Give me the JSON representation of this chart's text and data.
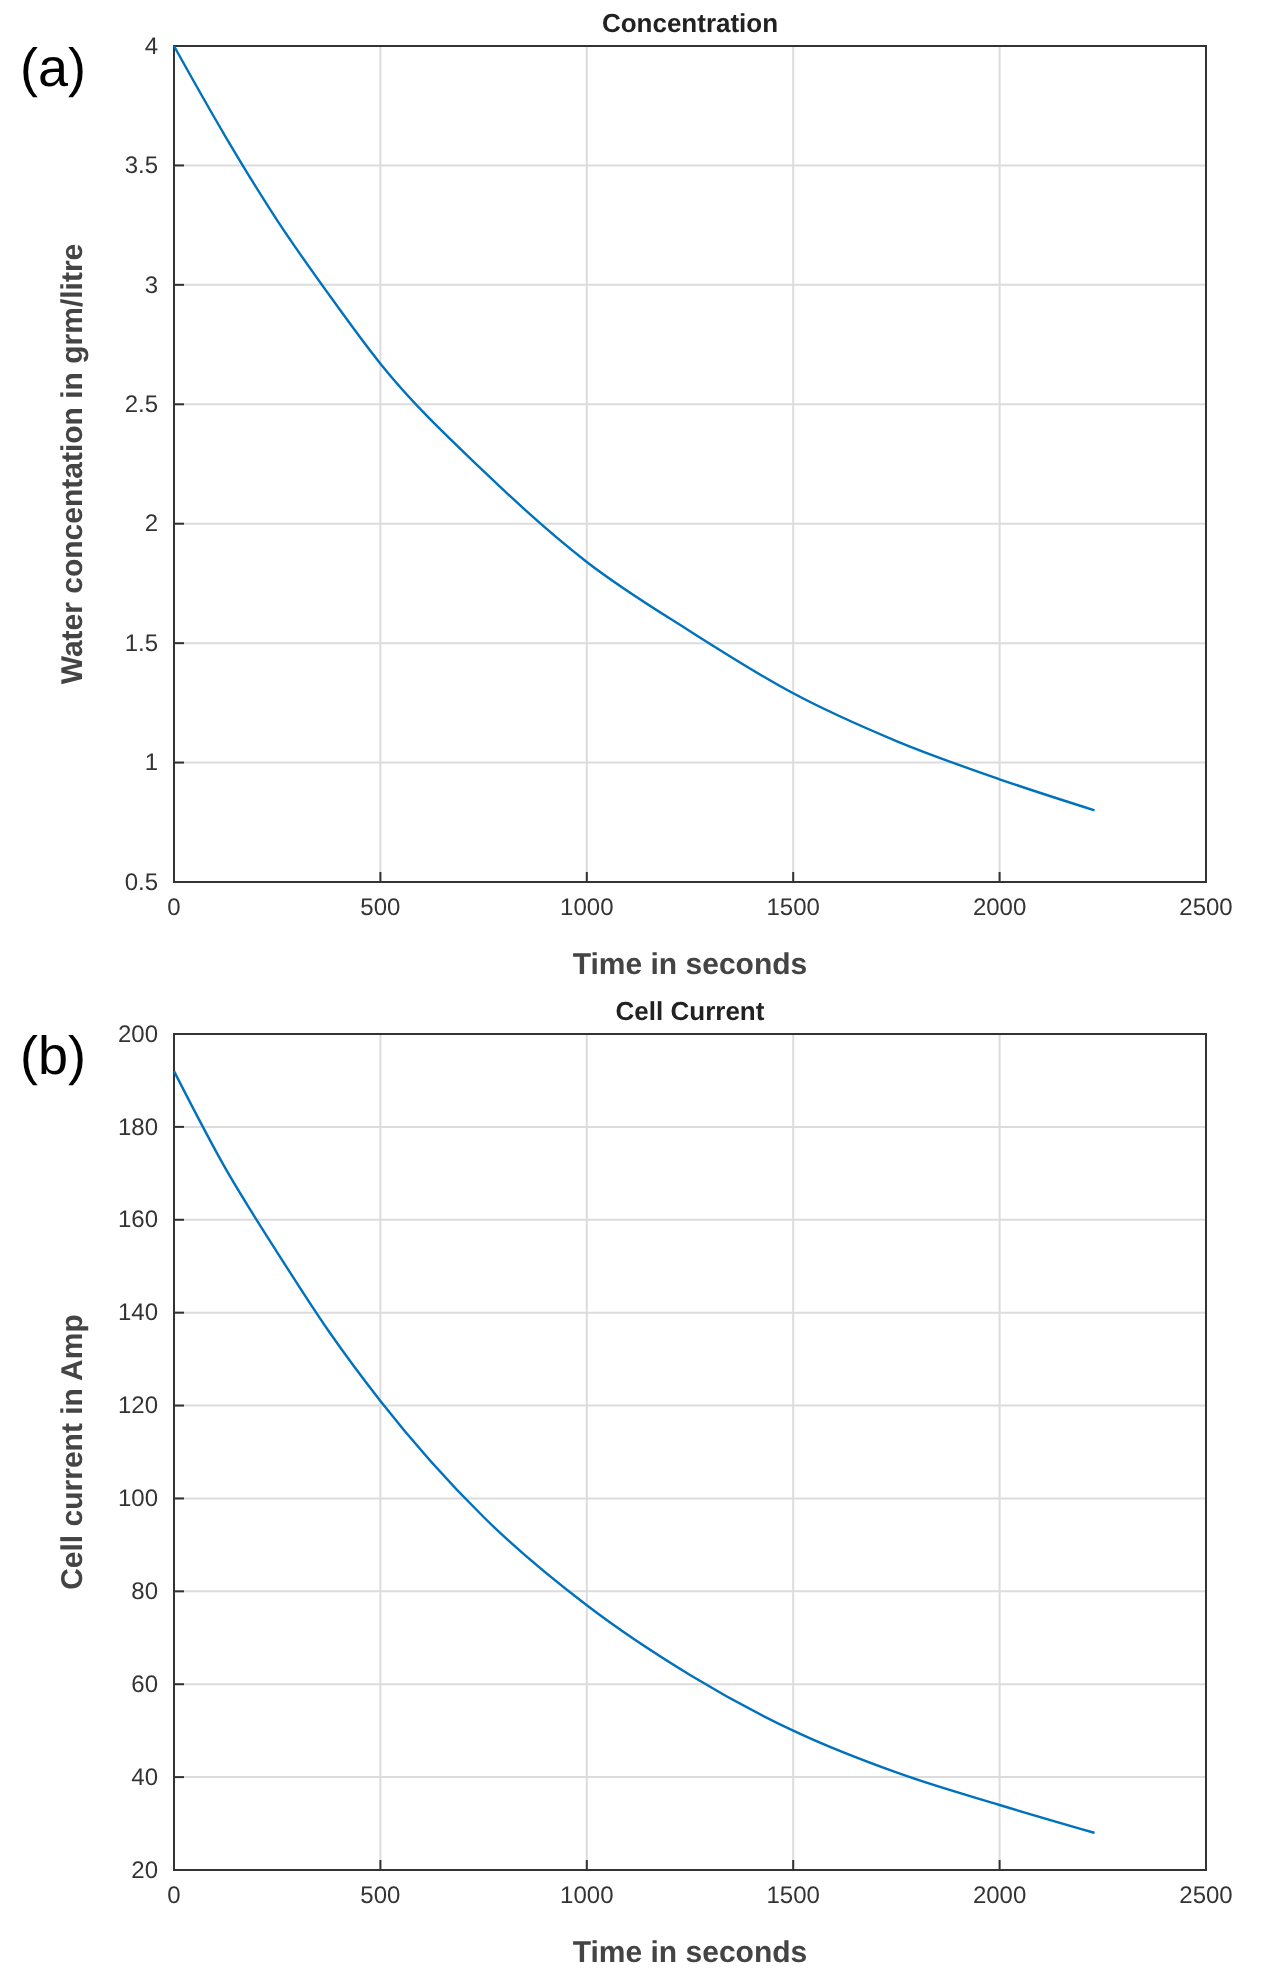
{
  "chart_data": [
    {
      "type": "line",
      "title": "Concentration",
      "xlabel": "Time in seconds",
      "ylabel": "Water concentation in grm/litre",
      "annotations": [
        "(a)"
      ],
      "grid": true,
      "xlim": [
        0,
        2500
      ],
      "xticks": [
        0,
        500,
        1000,
        1500,
        2000,
        2500
      ],
      "ylim": [
        0.5,
        4
      ],
      "yticks": [
        0.5,
        1,
        1.5,
        2,
        2.5,
        3,
        3.5,
        4
      ],
      "series": [
        {
          "color": "#0072bd",
          "x": [
            0,
            125,
            250,
            375,
            500,
            750,
            1000,
            1250,
            1500,
            1750,
            2000,
            2230
          ],
          "values": [
            4,
            3.62,
            3.27,
            2.96,
            2.67,
            2.22,
            1.84,
            1.55,
            1.29,
            1.09,
            0.93,
            0.8
          ]
        }
      ]
    },
    {
      "type": "line",
      "title": "Cell Current",
      "xlabel": "Time in seconds",
      "ylabel": "Cell current in Amp",
      "annotations": [
        "(b)"
      ],
      "grid": true,
      "xlim": [
        0,
        2500
      ],
      "xticks": [
        0,
        500,
        1000,
        1500,
        2000,
        2500
      ],
      "ylim": [
        20,
        200
      ],
      "yticks": [
        20,
        40,
        60,
        80,
        100,
        120,
        140,
        160,
        180,
        200
      ],
      "series": [
        {
          "color": "#0072bd",
          "x": [
            0,
            125,
            250,
            375,
            500,
            750,
            1000,
            1250,
            1500,
            1750,
            2000,
            2230
          ],
          "values": [
            192,
            171,
            153,
            136,
            121,
            96,
            77,
            62,
            50,
            41,
            34,
            28
          ]
        }
      ]
    }
  ]
}
